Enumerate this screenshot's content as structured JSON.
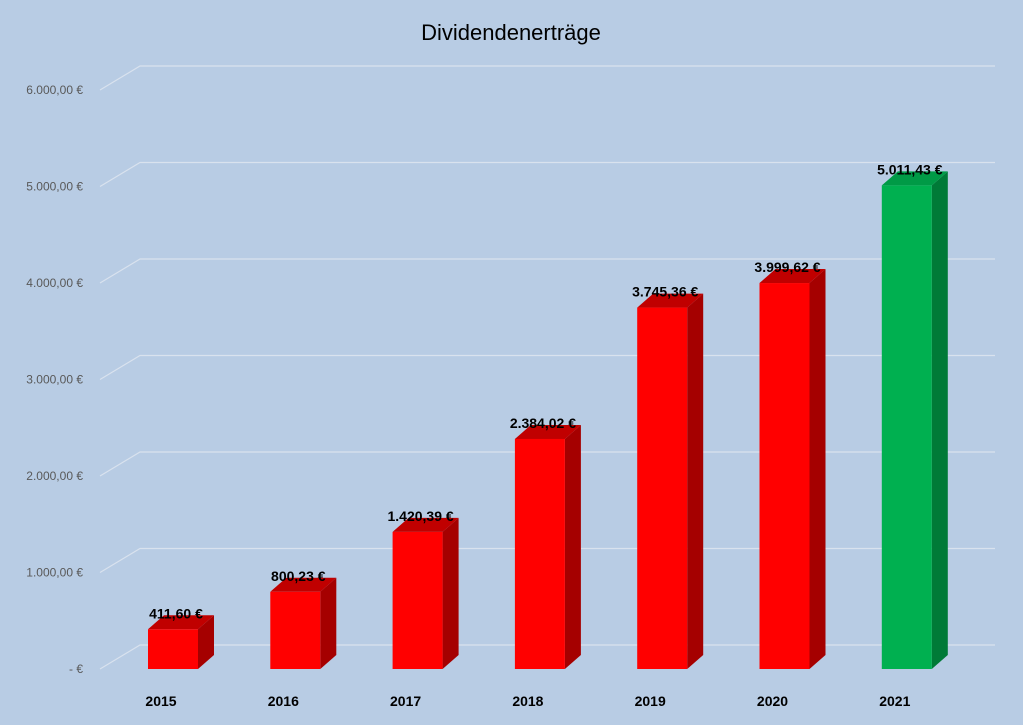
{
  "chart_data": {
    "type": "bar",
    "title": "Dividendenerträge",
    "xlabel": "",
    "ylabel": "",
    "categories": [
      "2015",
      "2016",
      "2017",
      "2018",
      "2019",
      "2020",
      "2021"
    ],
    "values": [
      411.6,
      800.23,
      1420.39,
      2384.02,
      3745.36,
      3999.62,
      5011.43
    ],
    "value_labels": [
      "411,60 €",
      "800,23 €",
      "1.420,39 €",
      "2.384,02 €",
      "3.745,36 €",
      "3.999,62 €",
      "5.011,43 €"
    ],
    "ylim": [
      0,
      6000
    ],
    "yticks": [
      0,
      1000,
      2000,
      3000,
      4000,
      5000,
      6000
    ],
    "ytick_labels": [
      " -   €",
      "1.000,00 €",
      "2.000,00 €",
      "3.000,00 €",
      "4.000,00 €",
      "5.000,00 €",
      "6.000,00 €"
    ],
    "grid": true,
    "legend": "none",
    "style": "3d-column",
    "colors": {
      "background": "#b8cce4",
      "bar": "#ff0000",
      "bar_side": "#a50000",
      "bar_top": "#c00000",
      "highlight_bar": "#00b050",
      "highlight_side": "#007a37",
      "highlight_top": "#009a46",
      "gridline": "#d9e2ee"
    },
    "highlight_index": 6
  }
}
